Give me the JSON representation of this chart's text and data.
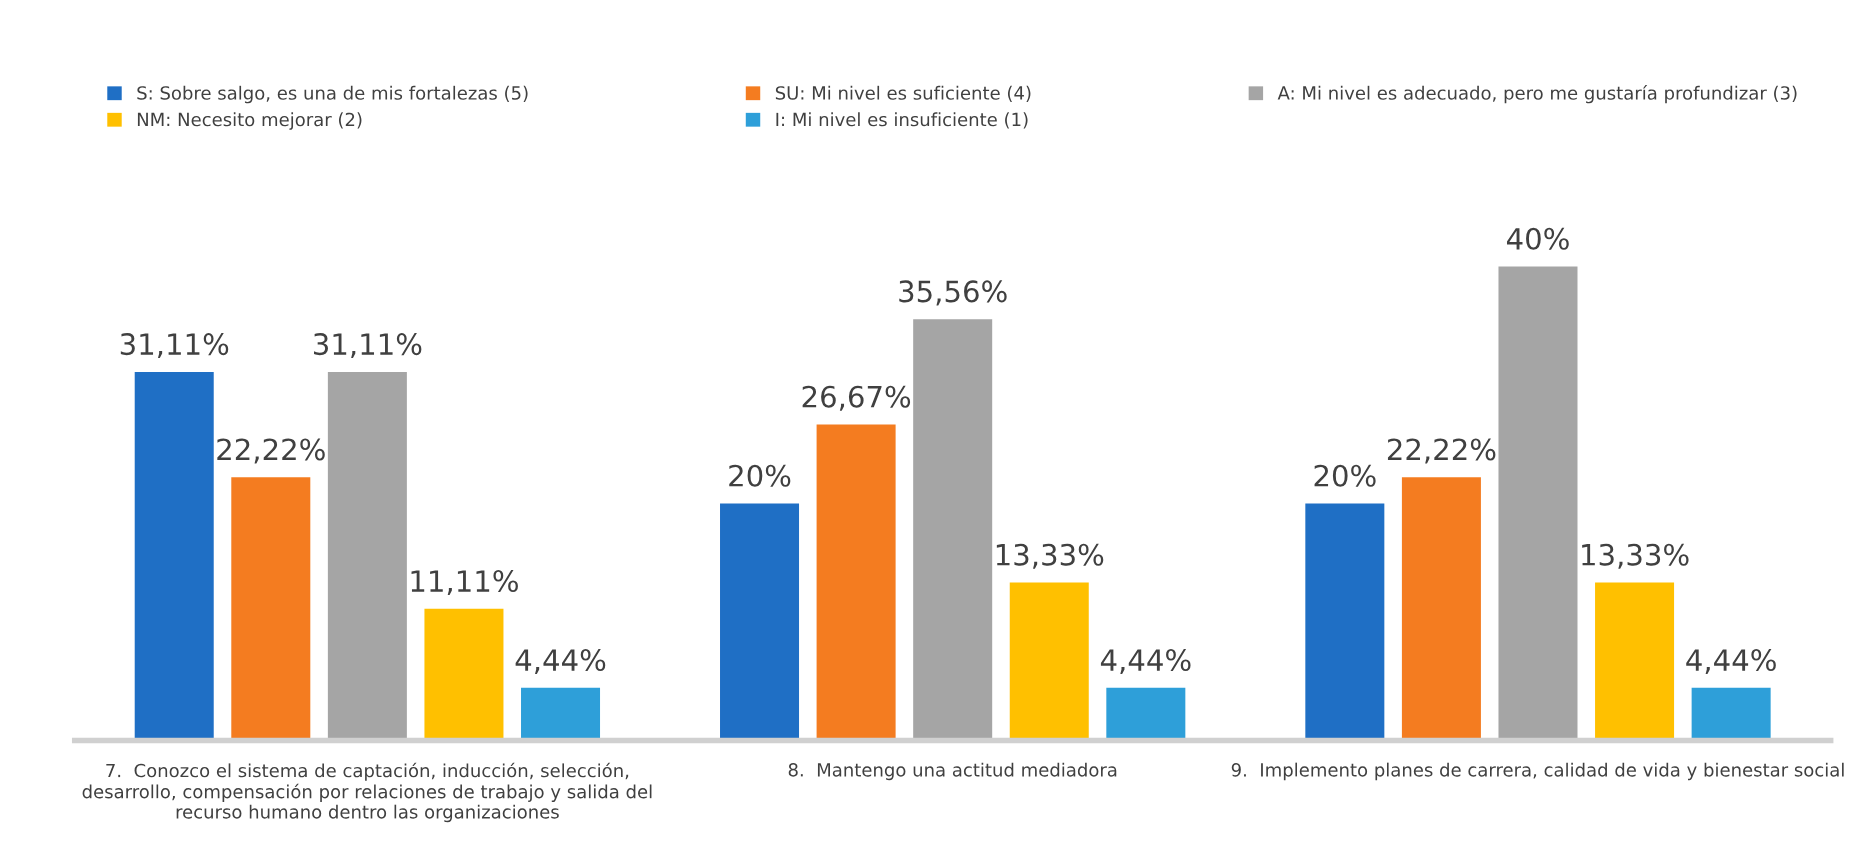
{
  "chart_data": {
    "type": "bar",
    "categories": [
      "7.  Conozco el sistema de captación, inducción, selección,\ndesarrollo, compensación por relaciones de trabajo y salida del\nrecurso humano dentro las organizaciones",
      "8.  Mantengo una actitud mediadora",
      "9.  Implemento planes de carrera, calidad de vida y bienestar social"
    ],
    "series": [
      {
        "name": "S: Sobre salgo, es una de mis fortalezas (5)",
        "color": "#1f6fc5",
        "values": [
          31.11,
          20,
          20
        ],
        "value_labels": [
          "31,11%",
          "20%",
          "20%"
        ]
      },
      {
        "name": "SU: Mi nivel es suficiente (4)",
        "color": "#f47c20",
        "values": [
          22.22,
          26.67,
          22.22
        ],
        "value_labels": [
          "22,22%",
          "26,67%",
          "22,22%"
        ]
      },
      {
        "name": "A: Mi nivel es adecuado, pero me gustaría profundizar (3)",
        "color": "#a5a5a5",
        "values": [
          31.11,
          35.56,
          40
        ],
        "value_labels": [
          "31,11%",
          "35,56%",
          "40%"
        ]
      },
      {
        "name": "NM: Necesito mejorar (2)",
        "color": "#ffc000",
        "values": [
          11.11,
          13.33,
          13.33
        ],
        "value_labels": [
          "11,11%",
          "13,33%",
          "13,33%"
        ]
      },
      {
        "name": "I: Mi nivel es insuficiente (1)",
        "color": "#2e9fd9",
        "values": [
          4.44,
          4.44,
          4.44
        ],
        "value_labels": [
          "4,44%",
          "4,44%",
          "4,44%"
        ]
      }
    ],
    "legend": "top",
    "grid": false
  }
}
